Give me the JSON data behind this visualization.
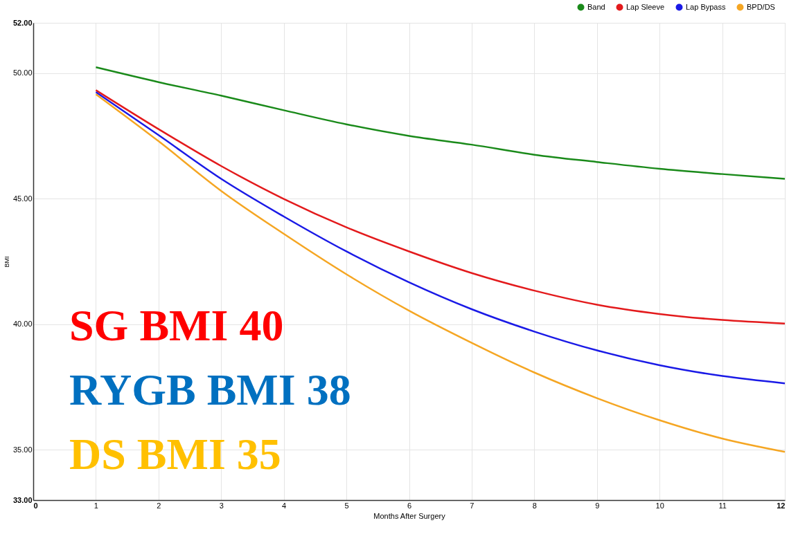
{
  "chart_data": {
    "type": "line",
    "xlabel": "Months After Surgery",
    "ylabel": "BMI",
    "x": [
      1,
      2,
      3,
      4,
      5,
      6,
      7,
      8,
      9,
      10,
      11,
      12
    ],
    "series": [
      {
        "name": "Band",
        "color": "#1a8a1a",
        "values": [
          50.23,
          49.64,
          49.1,
          48.52,
          47.96,
          47.5,
          47.15,
          46.75,
          46.46,
          46.19,
          45.98,
          45.79
        ]
      },
      {
        "name": "Lap Sleeve",
        "color": "#e31a1c",
        "values": [
          49.32,
          47.77,
          46.3,
          44.99,
          43.86,
          42.9,
          42.04,
          41.34,
          40.78,
          40.41,
          40.17,
          40.03
        ]
      },
      {
        "name": "Lap Bypass",
        "color": "#1a1ae6",
        "values": [
          49.24,
          47.53,
          45.79,
          44.29,
          42.9,
          41.67,
          40.6,
          39.71,
          38.96,
          38.37,
          37.94,
          37.65
        ]
      },
      {
        "name": "BPD/DS",
        "color": "#f5a623",
        "values": [
          49.16,
          47.29,
          45.31,
          43.6,
          41.99,
          40.54,
          39.26,
          38.08,
          37.06,
          36.18,
          35.45,
          34.92
        ]
      }
    ],
    "xlim": [
      0,
      12
    ],
    "xticks": [
      0,
      1,
      2,
      3,
      4,
      5,
      6,
      7,
      8,
      9,
      10,
      11,
      12
    ],
    "ylim": [
      33,
      52
    ],
    "yticks": [
      {
        "value": 33,
        "label": "33.00"
      },
      {
        "value": 35,
        "label": "35.00"
      },
      {
        "value": 40,
        "label": "40.00"
      },
      {
        "value": 45,
        "label": "45.00"
      },
      {
        "value": 50,
        "label": "50.00"
      },
      {
        "value": 52,
        "label": "52.00"
      }
    ],
    "grid": true,
    "legend": "top right",
    "marker": "none",
    "line_style": "solid",
    "annotations": [
      "SG BMI 40",
      "RYGB BMI 38",
      "DS BMI 35"
    ]
  }
}
